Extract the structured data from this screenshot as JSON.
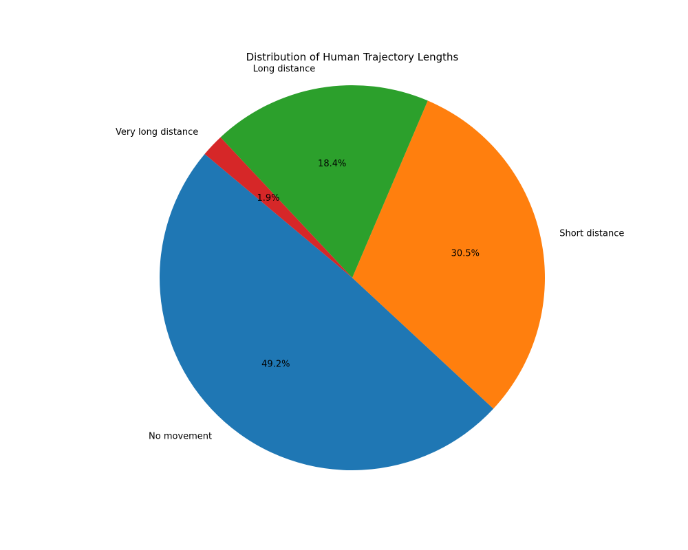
{
  "chart_data": {
    "type": "pie",
    "title": "Distribution of Human Trajectory Lengths",
    "start_angle_deg": 140,
    "direction": "counterclockwise",
    "slices": [
      {
        "label": "No movement",
        "value": 49.2,
        "pct_label": "49.2%",
        "color": "#1f77b4"
      },
      {
        "label": "Short distance",
        "value": 30.5,
        "pct_label": "30.5%",
        "color": "#ff7f0e"
      },
      {
        "label": "Long distance",
        "value": 18.4,
        "pct_label": "18.4%",
        "color": "#2ca02c"
      },
      {
        "label": "Very long distance",
        "value": 1.9,
        "pct_label": "1.9%",
        "color": "#d62728"
      }
    ]
  }
}
